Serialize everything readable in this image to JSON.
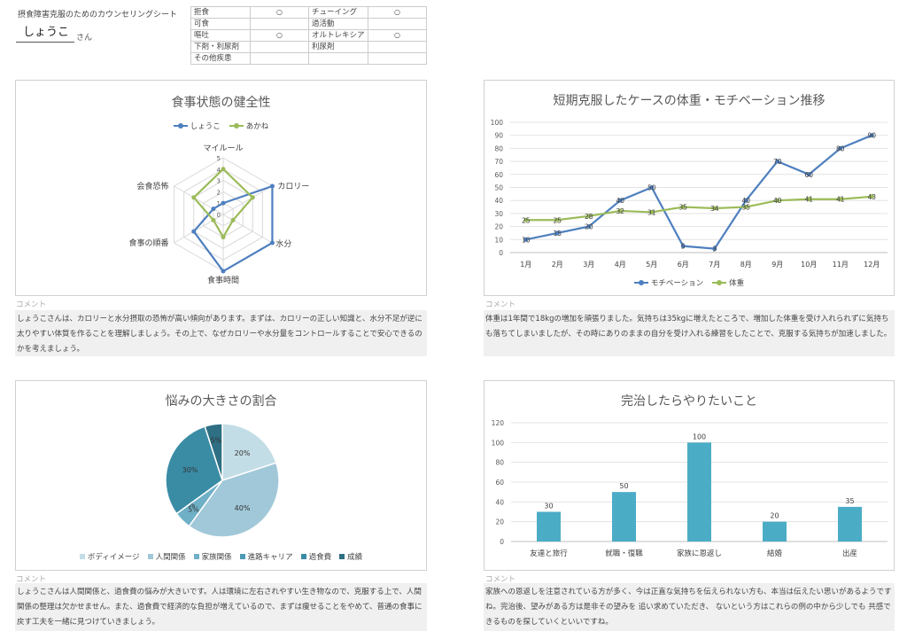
{
  "header": {
    "title": "摂食障害克服のためのカウンセリングシート",
    "client_name": "しょうこ",
    "client_suffix": "さん"
  },
  "conditions": {
    "rows": [
      [
        "拒食",
        "○",
        "チューイング",
        "○"
      ],
      [
        "可食",
        "",
        "過活動",
        ""
      ],
      [
        "嘔吐",
        "○",
        "オルトレキシア",
        "○"
      ],
      [
        "下剤・利尿剤",
        "",
        "利尿剤",
        ""
      ],
      [
        "その他疾患",
        "",
        "",
        ""
      ]
    ]
  },
  "comment_label": "コメント",
  "colors": {
    "blue": "#4e7fbf",
    "green": "#9bbb59",
    "teal": "#4bacc6"
  },
  "comments": {
    "radar": "しょうこさんは、カロリーと水分摂取の恐怖が高い傾向があります。まずは、カロリーの正しい知識と、水分不足が逆に太りやすい体質を作ることを理解しましょう。その上で、なぜカロリーや水分量をコントロールすることで安心できるのかを考えましょう。",
    "line": "体重は1年間で18kgの増加を頑張りました。気持ちは35kgに増えたところで、増加した体重を受け入れられずに気持ちも落ちてしまいましたが、その時にありのままの自分を受け入れる練習をしたことで、克服する気持ちが加速しました。",
    "pie": "しょうこさんは人間関係と、過食費の悩みが大きいです。人は環境に左右されやすい生き物なので、克服する上で、人間関係の整理は欠かせません。また、過食費で経済的な負担が増えているので、まずは痩せることをやめて、普通の食事に戻す工夫を一緒に見つけていきましょう。",
    "bar": "家族への恩返しを注意されている方が多く、今は正直な気持ちを伝えられない方も、本当は伝えたい思いがあるようですね。完治後、望みがある方は是非その望みを 追い求めていただき、 ないという方はこれらの例の中から少しでも 共感できるものを探していくといいですね。"
  },
  "chart_data": [
    {
      "type": "radar",
      "title": "食事状態の健全性",
      "categories": [
        "マイルール",
        "カロリー",
        "水分",
        "食事時間",
        "食事の順番",
        "会食恐怖"
      ],
      "ticks": [
        "0",
        "1",
        "2",
        "3",
        "4",
        "5"
      ],
      "rmax": 5,
      "series": [
        {
          "name": "しょうこ",
          "values": [
            1,
            5,
            5,
            5,
            3,
            1
          ],
          "color": "#4e7fbf"
        },
        {
          "name": "あかね",
          "values": [
            4,
            3,
            1,
            2,
            1,
            3
          ],
          "color": "#9bbb59"
        }
      ],
      "legend": "top"
    },
    {
      "type": "line",
      "title": "短期克服したケースの体重・モチベーション推移",
      "categories": [
        "1月",
        "2月",
        "3月",
        "4月",
        "5月",
        "6月",
        "7月",
        "8月",
        "9月",
        "10月",
        "11月",
        "12月"
      ],
      "ylim": [
        0,
        100
      ],
      "yticks": [
        "0",
        "10",
        "20",
        "30",
        "40",
        "50",
        "60",
        "70",
        "80",
        "90",
        "100"
      ],
      "series": [
        {
          "name": "モチベーション",
          "values": [
            10,
            15,
            20,
            40,
            50,
            5,
            3,
            40,
            70,
            60,
            80,
            90
          ],
          "labels": [
            "10",
            "15",
            "20",
            "40",
            "50",
            "5",
            "3",
            "40",
            "70",
            "60",
            "80",
            "90"
          ],
          "color": "#4e7fbf"
        },
        {
          "name": "体重",
          "values": [
            25,
            25,
            28,
            32,
            31,
            35,
            34,
            35,
            40,
            41,
            41,
            43
          ],
          "labels": [
            "25",
            "25",
            "28",
            "32",
            "31",
            "35",
            "34",
            "35",
            "40",
            "41",
            "41",
            "43"
          ],
          "color": "#9bbb59"
        }
      ],
      "legend": "bottom",
      "grid": true
    },
    {
      "type": "pie",
      "title": "悩みの大きさの割合",
      "slices": [
        {
          "name": "ボディイメージ",
          "value": 20,
          "label": "20%",
          "color": "#c3dde6"
        },
        {
          "name": "人間関係",
          "value": 40,
          "label": "40%",
          "color": "#a1c8d8"
        },
        {
          "name": "家族関係",
          "value": 5,
          "label": "5%",
          "color": "#6fb0c7"
        },
        {
          "name": "進路キャリア",
          "value": 0,
          "label": "0%",
          "color": "#4c9ab3"
        },
        {
          "name": "過食費",
          "value": 30,
          "label": "30%",
          "color": "#3a8ca5"
        },
        {
          "name": "成績",
          "value": 5,
          "label": "5%",
          "color": "#2e6f84"
        }
      ],
      "legend": "bottom"
    },
    {
      "type": "bar",
      "title": "完治したらやりたいこと",
      "categories": [
        "友達と旅行",
        "就職・復職",
        "家族に恩返し",
        "結婚",
        "出産"
      ],
      "values": [
        30,
        50,
        100,
        20,
        35
      ],
      "labels": [
        "30",
        "50",
        "100",
        "20",
        "35"
      ],
      "ylim": [
        0,
        120
      ],
      "yticks": [
        "0",
        "20",
        "40",
        "60",
        "80",
        "100",
        "120"
      ],
      "color": "#4bacc6",
      "grid": true
    }
  ]
}
